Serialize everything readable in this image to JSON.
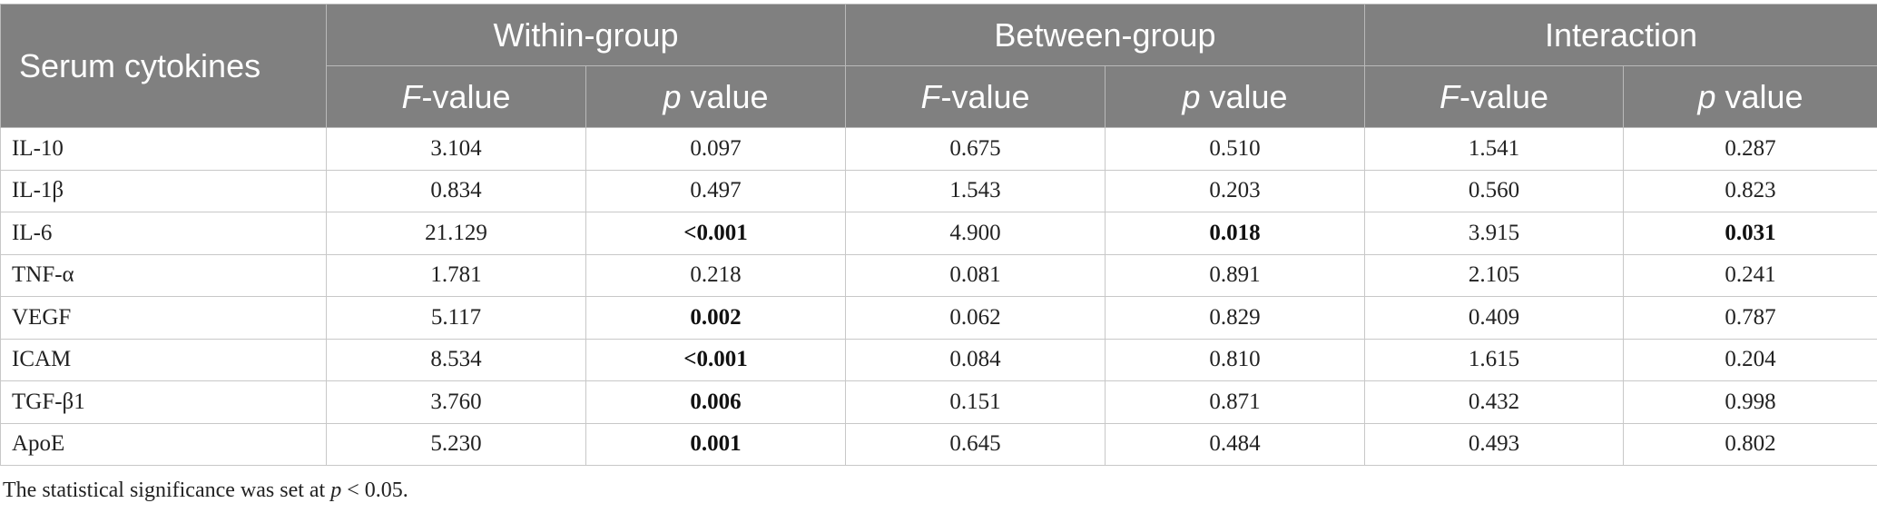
{
  "header": {
    "row_label": "Serum cytokines",
    "groups": [
      "Within-group",
      "Between-group",
      "Interaction"
    ],
    "sub": {
      "f_italic": "F",
      "f_rest": "-value",
      "p_italic": "p",
      "p_rest": " value"
    }
  },
  "rows": [
    {
      "name": "IL-10",
      "cells": [
        "3.104",
        "0.097",
        "0.675",
        "0.510",
        "1.541",
        "0.287"
      ],
      "bold": [
        false,
        false,
        false,
        false,
        false,
        false
      ]
    },
    {
      "name": "IL-1β",
      "cells": [
        "0.834",
        "0.497",
        "1.543",
        "0.203",
        "0.560",
        "0.823"
      ],
      "bold": [
        false,
        false,
        false,
        false,
        false,
        false
      ]
    },
    {
      "name": "IL-6",
      "cells": [
        "21.129",
        "<0.001",
        "4.900",
        "0.018",
        "3.915",
        "0.031"
      ],
      "bold": [
        false,
        true,
        false,
        true,
        false,
        true
      ]
    },
    {
      "name": "TNF-α",
      "cells": [
        "1.781",
        "0.218",
        "0.081",
        "0.891",
        "2.105",
        "0.241"
      ],
      "bold": [
        false,
        false,
        false,
        false,
        false,
        false
      ]
    },
    {
      "name": "VEGF",
      "cells": [
        "5.117",
        "0.002",
        "0.062",
        "0.829",
        "0.409",
        "0.787"
      ],
      "bold": [
        false,
        true,
        false,
        false,
        false,
        false
      ]
    },
    {
      "name": "ICAM",
      "cells": [
        "8.534",
        "<0.001",
        "0.084",
        "0.810",
        "1.615",
        "0.204"
      ],
      "bold": [
        false,
        true,
        false,
        false,
        false,
        false
      ]
    },
    {
      "name": "TGF-β1",
      "cells": [
        "3.760",
        "0.006",
        "0.151",
        "0.871",
        "0.432",
        "0.998"
      ],
      "bold": [
        false,
        true,
        false,
        false,
        false,
        false
      ]
    },
    {
      "name": "ApoE",
      "cells": [
        "5.230",
        "0.001",
        "0.645",
        "0.484",
        "0.493",
        "0.802"
      ],
      "bold": [
        false,
        true,
        false,
        false,
        false,
        false
      ]
    }
  ],
  "footnote": {
    "text_before": "The statistical significance was set at ",
    "p_italic": "p",
    "text_after": " < 0.05."
  },
  "colors": {
    "header_bg": "#808080",
    "header_text": "#ffffff",
    "border": "#c8c8c8"
  }
}
